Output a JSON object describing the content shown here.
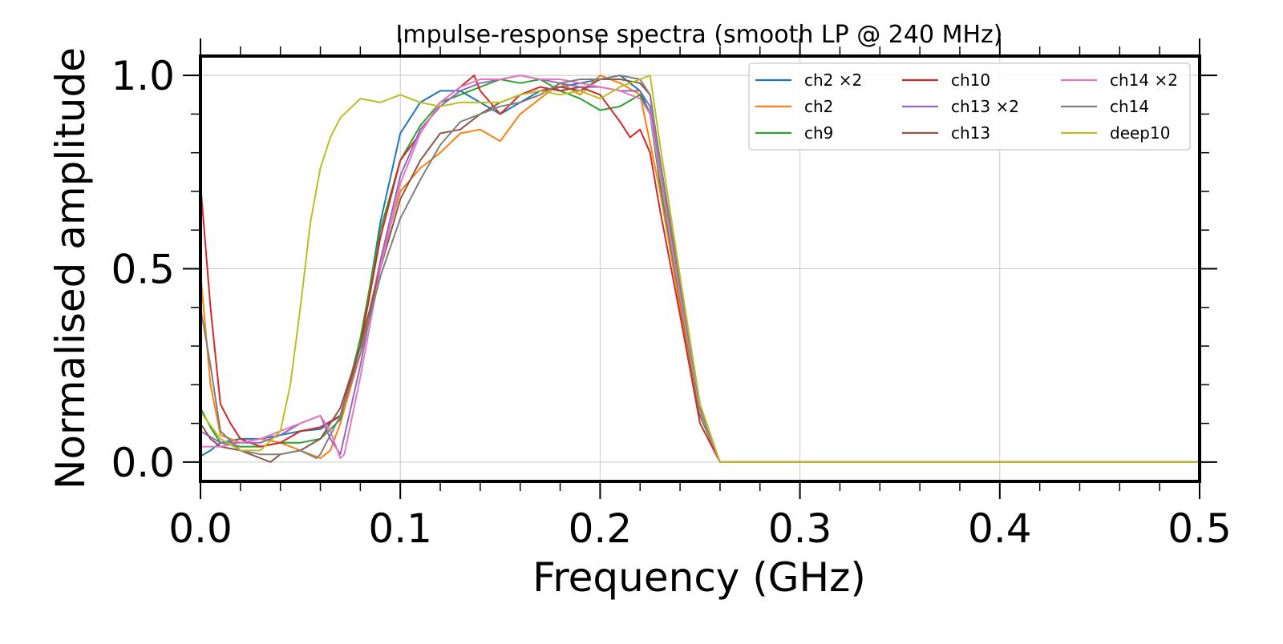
{
  "chart_data": {
    "type": "line",
    "title": "Impulse-response spectra (smooth LP @ 240 MHz)",
    "xlabel": "Frequency (GHz)",
    "ylabel": "Normalised amplitude",
    "xlim": [
      0.0,
      0.5
    ],
    "ylim": [
      -0.05,
      1.05
    ],
    "xticks": [
      0.0,
      0.1,
      0.2,
      0.3,
      0.4,
      0.5
    ],
    "xtick_labels": [
      "0.0",
      "0.1",
      "0.2",
      "0.3",
      "0.4",
      "0.5"
    ],
    "yticks": [
      0.0,
      0.5,
      1.0
    ],
    "ytick_labels": [
      "0.0",
      "0.5",
      "1.0"
    ],
    "grid": true,
    "legend_position": "top-right",
    "legend_columns": 3,
    "series": [
      {
        "name": "ch2 ×2",
        "color": "#1f77b4",
        "x": [
          0.0,
          0.005,
          0.01,
          0.02,
          0.03,
          0.04,
          0.05,
          0.06,
          0.07,
          0.08,
          0.09,
          0.1,
          0.11,
          0.12,
          0.13,
          0.14,
          0.15,
          0.16,
          0.17,
          0.18,
          0.19,
          0.2,
          0.21,
          0.22,
          0.225,
          0.23,
          0.24,
          0.25,
          0.26,
          0.3,
          0.4,
          0.5
        ],
        "y": [
          0.015,
          0.03,
          0.05,
          0.06,
          0.06,
          0.07,
          0.08,
          0.085,
          0.12,
          0.3,
          0.62,
          0.85,
          0.93,
          0.96,
          0.96,
          0.93,
          0.9,
          0.93,
          0.96,
          0.97,
          0.98,
          0.99,
          1.0,
          0.96,
          0.9,
          0.72,
          0.42,
          0.12,
          0.0,
          0.0,
          0.0,
          0.0
        ]
      },
      {
        "name": "ch2",
        "color": "#ff7f0e",
        "x": [
          0.0,
          0.005,
          0.01,
          0.02,
          0.03,
          0.04,
          0.05,
          0.06,
          0.065,
          0.07,
          0.08,
          0.09,
          0.1,
          0.11,
          0.12,
          0.13,
          0.14,
          0.15,
          0.16,
          0.17,
          0.18,
          0.19,
          0.2,
          0.21,
          0.22,
          0.23,
          0.24,
          0.25,
          0.26,
          0.3,
          0.4,
          0.5
        ],
        "y": [
          0.49,
          0.2,
          0.07,
          0.05,
          0.06,
          0.05,
          0.03,
          0.01,
          0.03,
          0.1,
          0.28,
          0.52,
          0.7,
          0.76,
          0.8,
          0.85,
          0.86,
          0.83,
          0.9,
          0.94,
          0.98,
          0.95,
          1.0,
          0.98,
          0.95,
          0.7,
          0.4,
          0.12,
          0.0,
          0.0,
          0.0,
          0.0
        ]
      },
      {
        "name": "ch9",
        "color": "#2ca02c",
        "x": [
          0.0,
          0.005,
          0.01,
          0.02,
          0.03,
          0.04,
          0.05,
          0.06,
          0.07,
          0.08,
          0.09,
          0.1,
          0.11,
          0.12,
          0.13,
          0.14,
          0.15,
          0.16,
          0.17,
          0.18,
          0.19,
          0.2,
          0.21,
          0.22,
          0.225,
          0.23,
          0.24,
          0.25,
          0.26,
          0.3,
          0.4,
          0.5
        ],
        "y": [
          0.14,
          0.09,
          0.05,
          0.04,
          0.04,
          0.05,
          0.05,
          0.06,
          0.11,
          0.32,
          0.6,
          0.78,
          0.87,
          0.93,
          0.95,
          0.97,
          0.99,
          0.98,
          0.99,
          0.96,
          0.94,
          0.91,
          0.92,
          0.95,
          0.9,
          0.72,
          0.42,
          0.12,
          0.0,
          0.0,
          0.0,
          0.0
        ]
      },
      {
        "name": "ch10",
        "color": "#d62728",
        "x": [
          0.0,
          0.005,
          0.01,
          0.015,
          0.02,
          0.03,
          0.04,
          0.05,
          0.06,
          0.07,
          0.08,
          0.09,
          0.1,
          0.11,
          0.12,
          0.13,
          0.137,
          0.14,
          0.15,
          0.16,
          0.17,
          0.18,
          0.19,
          0.2,
          0.21,
          0.215,
          0.22,
          0.225,
          0.23,
          0.24,
          0.25,
          0.26,
          0.3,
          0.4,
          0.5
        ],
        "y": [
          0.72,
          0.4,
          0.15,
          0.1,
          0.06,
          0.04,
          0.05,
          0.08,
          0.09,
          0.12,
          0.3,
          0.58,
          0.78,
          0.85,
          0.93,
          0.97,
          1.0,
          0.96,
          0.9,
          0.95,
          0.97,
          0.96,
          0.97,
          0.95,
          0.88,
          0.84,
          0.86,
          0.8,
          0.65,
          0.38,
          0.1,
          0.0,
          0.0,
          0.0,
          0.0
        ]
      },
      {
        "name": "ch13 ×2",
        "color": "#9467bd",
        "x": [
          0.0,
          0.01,
          0.02,
          0.03,
          0.04,
          0.05,
          0.06,
          0.065,
          0.07,
          0.08,
          0.09,
          0.1,
          0.11,
          0.12,
          0.13,
          0.14,
          0.15,
          0.16,
          0.17,
          0.18,
          0.19,
          0.2,
          0.21,
          0.22,
          0.225,
          0.23,
          0.24,
          0.25,
          0.26,
          0.3,
          0.4,
          0.5
        ],
        "y": [
          0.08,
          0.05,
          0.05,
          0.05,
          0.07,
          0.1,
          0.12,
          0.06,
          0.02,
          0.25,
          0.52,
          0.74,
          0.86,
          0.92,
          0.96,
          0.98,
          0.99,
          1.0,
          0.99,
          0.98,
          0.97,
          0.97,
          0.96,
          0.96,
          0.92,
          0.75,
          0.44,
          0.13,
          0.0,
          0.0,
          0.0,
          0.0
        ]
      },
      {
        "name": "ch13",
        "color": "#8c564b",
        "x": [
          0.0,
          0.005,
          0.01,
          0.02,
          0.025,
          0.03,
          0.035,
          0.04,
          0.05,
          0.06,
          0.07,
          0.08,
          0.09,
          0.1,
          0.11,
          0.12,
          0.13,
          0.14,
          0.15,
          0.16,
          0.17,
          0.18,
          0.19,
          0.2,
          0.21,
          0.22,
          0.225,
          0.23,
          0.24,
          0.25,
          0.26,
          0.3,
          0.4,
          0.5
        ],
        "y": [
          0.1,
          0.06,
          0.04,
          0.03,
          0.02,
          0.01,
          0.0,
          0.02,
          0.03,
          0.06,
          0.14,
          0.3,
          0.5,
          0.68,
          0.78,
          0.85,
          0.86,
          0.9,
          0.93,
          0.95,
          0.96,
          0.97,
          0.96,
          0.99,
          0.99,
          0.98,
          0.95,
          0.78,
          0.46,
          0.14,
          0.0,
          0.0,
          0.0,
          0.0
        ]
      },
      {
        "name": "ch14 ×2",
        "color": "#e377c2",
        "x": [
          0.0,
          0.01,
          0.02,
          0.03,
          0.04,
          0.05,
          0.06,
          0.065,
          0.07,
          0.072,
          0.08,
          0.09,
          0.1,
          0.11,
          0.12,
          0.13,
          0.14,
          0.15,
          0.16,
          0.17,
          0.18,
          0.19,
          0.2,
          0.21,
          0.22,
          0.225,
          0.23,
          0.24,
          0.25,
          0.26,
          0.3,
          0.4,
          0.5
        ],
        "y": [
          0.04,
          0.04,
          0.05,
          0.06,
          0.08,
          0.1,
          0.12,
          0.08,
          0.01,
          0.02,
          0.22,
          0.5,
          0.72,
          0.85,
          0.93,
          0.97,
          0.99,
          0.99,
          1.0,
          0.99,
          0.99,
          0.98,
          0.97,
          0.96,
          0.94,
          0.9,
          0.74,
          0.43,
          0.13,
          0.0,
          0.0,
          0.0,
          0.0
        ]
      },
      {
        "name": "ch14",
        "color": "#7f7f7f",
        "x": [
          0.0,
          0.005,
          0.01,
          0.02,
          0.03,
          0.04,
          0.05,
          0.058,
          0.06,
          0.07,
          0.08,
          0.09,
          0.1,
          0.11,
          0.12,
          0.13,
          0.14,
          0.15,
          0.16,
          0.17,
          0.18,
          0.19,
          0.2,
          0.21,
          0.22,
          0.225,
          0.23,
          0.24,
          0.25,
          0.26,
          0.3,
          0.4,
          0.5
        ],
        "y": [
          0.4,
          0.25,
          0.08,
          0.03,
          0.02,
          0.02,
          0.03,
          0.01,
          0.02,
          0.12,
          0.28,
          0.48,
          0.63,
          0.73,
          0.82,
          0.88,
          0.9,
          0.92,
          0.93,
          0.95,
          0.98,
          0.99,
          0.99,
          1.0,
          0.99,
          0.95,
          0.78,
          0.46,
          0.14,
          0.0,
          0.0,
          0.0,
          0.0
        ]
      },
      {
        "name": "deep10",
        "color": "#bcbd22",
        "x": [
          0.0,
          0.01,
          0.02,
          0.03,
          0.04,
          0.045,
          0.05,
          0.055,
          0.06,
          0.065,
          0.07,
          0.08,
          0.09,
          0.1,
          0.11,
          0.12,
          0.13,
          0.14,
          0.15,
          0.16,
          0.17,
          0.18,
          0.19,
          0.2,
          0.21,
          0.22,
          0.225,
          0.23,
          0.24,
          0.25,
          0.26,
          0.3,
          0.4,
          0.5
        ],
        "y": [
          0.13,
          0.06,
          0.03,
          0.03,
          0.08,
          0.2,
          0.4,
          0.62,
          0.76,
          0.84,
          0.89,
          0.94,
          0.93,
          0.95,
          0.93,
          0.92,
          0.93,
          0.93,
          0.93,
          0.95,
          0.96,
          0.95,
          0.96,
          0.94,
          0.97,
          0.99,
          1.0,
          0.82,
          0.48,
          0.15,
          0.0,
          0.0,
          0.0,
          0.0
        ]
      }
    ]
  }
}
